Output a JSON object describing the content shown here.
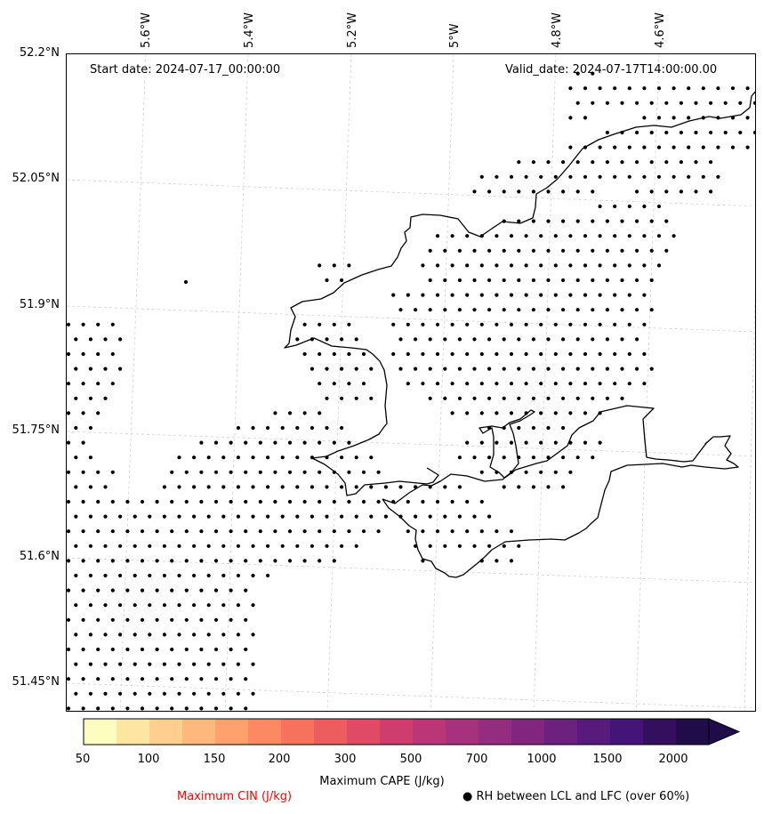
{
  "map": {
    "start_date": "Start date: 2024-07-17_00:00:00",
    "valid_date": "Valid_date: 2024-07-17T14:00:00.00",
    "lon_labels": [
      "5.6°W",
      "5.4°W",
      "5.2°W",
      "5°W",
      "4.8°W",
      "4.6°W"
    ],
    "lat_labels": [
      "52.2°N",
      "52.05°N",
      "51.9°N",
      "51.75°N",
      "51.6°N",
      "51.45°N"
    ],
    "coastline_color": "#000000",
    "gridline_color": "#cccccc",
    "marker": "black dots"
  },
  "colorbar": {
    "ticks": [
      "50",
      "100",
      "150",
      "200",
      "300",
      "500",
      "700",
      "1000",
      "1500",
      "2000"
    ],
    "colors": [
      "#fefdc0",
      "#fde6a2",
      "#fecf8f",
      "#feb87c",
      "#fea16d",
      "#fd8963",
      "#f7725c",
      "#ee5d5d",
      "#e04a64",
      "#ce3d6d",
      "#bb3677",
      "#a7317d",
      "#942c80",
      "#80267f",
      "#6d217e",
      "#591b7b",
      "#451479",
      "#330f5e",
      "#1f0c48"
    ],
    "extend": "max",
    "label": "Maximum CAPE (J/kg)"
  },
  "legend": {
    "cin_label": "Maximum CIN (J/kg)",
    "cin_color": "#ff0000",
    "rh_label": "● RH between LCL and LFC (over 60%)"
  }
}
